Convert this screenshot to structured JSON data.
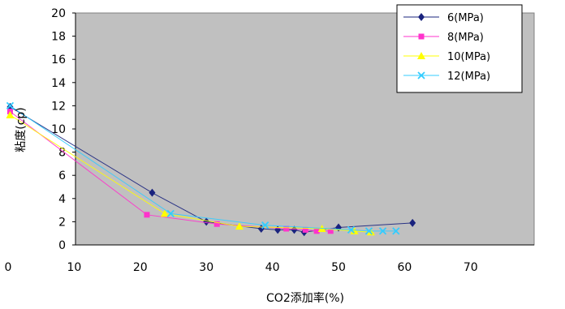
{
  "chart_data": {
    "type": "line",
    "xlabel": "CO2添加率(%)",
    "ylabel": "粘度(cp)",
    "xlim": [
      0,
      70
    ],
    "ylim": [
      0,
      20
    ],
    "x_ticks": [
      "0",
      "10",
      "20",
      "30",
      "40",
      "50",
      "60",
      "70"
    ],
    "y_ticks": [
      "0",
      "2",
      "4",
      "6",
      "8",
      "10",
      "12",
      "14",
      "16",
      "18",
      "20"
    ],
    "plot_background": "#c0c0c0",
    "grid": false,
    "legend_position": "top-right",
    "series": [
      {
        "name": "6(MPa)",
        "color": "#1a237e",
        "marker": "diamond",
        "points": [
          [
            0.3,
            11.9
          ],
          [
            21.8,
            4.5
          ],
          [
            30.0,
            2.0
          ],
          [
            38.3,
            1.4
          ],
          [
            40.8,
            1.3
          ],
          [
            43.3,
            1.3
          ],
          [
            44.8,
            1.1
          ],
          [
            50.0,
            1.5
          ],
          [
            61.2,
            1.9
          ]
        ]
      },
      {
        "name": "8(MPa)",
        "color": "#ff33cc",
        "marker": "square",
        "points": [
          [
            0.3,
            11.5
          ],
          [
            21.0,
            2.6
          ],
          [
            31.6,
            1.8
          ],
          [
            42.1,
            1.4
          ],
          [
            45.0,
            1.3
          ],
          [
            46.7,
            1.2
          ],
          [
            48.8,
            1.2
          ]
        ]
      },
      {
        "name": "10(MPa)",
        "color": "#ffff00",
        "marker": "triangle",
        "points": [
          [
            0.3,
            11.2
          ],
          [
            23.7,
            2.7
          ],
          [
            35.0,
            1.6
          ],
          [
            47.5,
            1.4
          ],
          [
            52.4,
            1.2
          ],
          [
            54.9,
            1.1
          ]
        ]
      },
      {
        "name": "12(MPa)",
        "color": "#33ccff",
        "marker": "x",
        "points": [
          [
            0.3,
            12.0
          ],
          [
            24.6,
            2.7
          ],
          [
            38.9,
            1.7
          ],
          [
            51.9,
            1.3
          ],
          [
            54.6,
            1.2
          ],
          [
            56.7,
            1.2
          ],
          [
            58.7,
            1.2
          ]
        ]
      }
    ]
  }
}
